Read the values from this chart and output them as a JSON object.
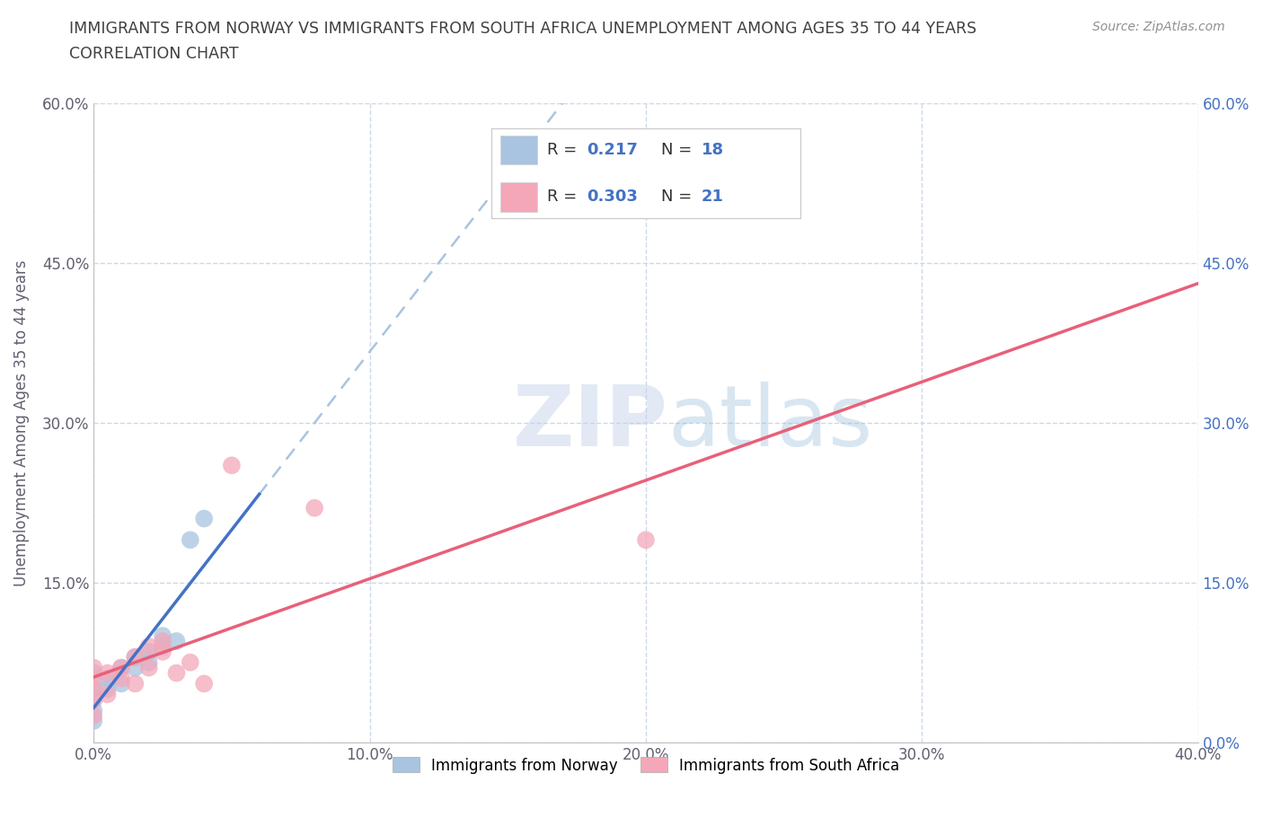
{
  "title_line1": "IMMIGRANTS FROM NORWAY VS IMMIGRANTS FROM SOUTH AFRICA UNEMPLOYMENT AMONG AGES 35 TO 44 YEARS",
  "title_line2": "CORRELATION CHART",
  "source_text": "Source: ZipAtlas.com",
  "ylabel": "Unemployment Among Ages 35 to 44 years",
  "norway_scatter_color": "#a8c4e0",
  "sa_scatter_color": "#f4a7b9",
  "norway_trend_color": "#4472c4",
  "sa_trend_color": "#e8607a",
  "dashed_trend_color": "#a8c4e0",
  "watermark_zip": "ZIP",
  "watermark_atlas": "atlas",
  "norway_R": 0.217,
  "norway_N": 18,
  "sa_R": 0.303,
  "sa_N": 21,
  "xlim": [
    0.0,
    0.4
  ],
  "ylim": [
    0.0,
    0.6
  ],
  "xticks": [
    0.0,
    0.1,
    0.2,
    0.3,
    0.4
  ],
  "xticklabels": [
    "0.0%",
    "10.0%",
    "20.0%",
    "30.0%",
    "40.0%"
  ],
  "yticks": [
    0.0,
    0.15,
    0.3,
    0.45,
    0.6
  ],
  "left_yticklabels": [
    "",
    "15.0%",
    "30.0%",
    "45.0%",
    "60.0%"
  ],
  "right_yticklabels": [
    "0.0%",
    "15.0%",
    "30.0%",
    "45.0%",
    "60.0%"
  ],
  "norway_scatter_x": [
    0.0,
    0.0,
    0.0,
    0.0,
    0.0,
    0.005,
    0.005,
    0.01,
    0.01,
    0.015,
    0.015,
    0.02,
    0.02,
    0.025,
    0.025,
    0.03,
    0.035,
    0.04
  ],
  "norway_scatter_y": [
    0.02,
    0.03,
    0.04,
    0.05,
    0.065,
    0.05,
    0.06,
    0.055,
    0.07,
    0.07,
    0.08,
    0.075,
    0.085,
    0.09,
    0.1,
    0.095,
    0.19,
    0.21
  ],
  "sa_scatter_x": [
    0.0,
    0.0,
    0.0,
    0.0,
    0.0,
    0.005,
    0.005,
    0.01,
    0.01,
    0.015,
    0.015,
    0.02,
    0.02,
    0.025,
    0.025,
    0.03,
    0.035,
    0.04,
    0.05,
    0.08,
    0.2
  ],
  "sa_scatter_y": [
    0.025,
    0.04,
    0.05,
    0.06,
    0.07,
    0.045,
    0.065,
    0.06,
    0.07,
    0.055,
    0.08,
    0.07,
    0.09,
    0.085,
    0.095,
    0.065,
    0.075,
    0.055,
    0.26,
    0.22,
    0.19
  ],
  "background_color": "#ffffff",
  "grid_color": "#c8d4e8",
  "title_color": "#404040",
  "tick_color": "#606070",
  "right_tick_color": "#4472c4",
  "legend_label_norway": "Immigrants from Norway",
  "legend_label_sa": "Immigrants from South Africa"
}
